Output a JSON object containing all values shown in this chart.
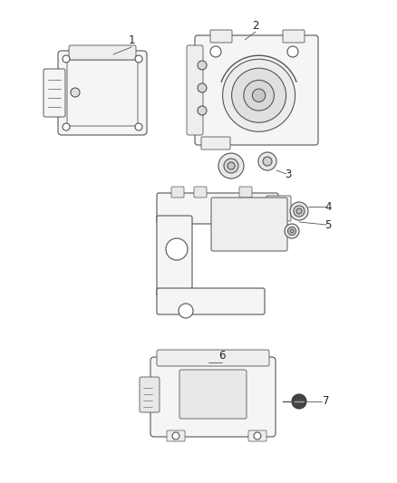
{
  "background_color": "#ffffff",
  "figure_width": 4.38,
  "figure_height": 5.33,
  "dpi": 100,
  "line_color": "#555555",
  "text_color": "#222222",
  "part_fill": "#f5f5f5",
  "part_edge": "#555555",
  "label_fontsize": 8.5
}
